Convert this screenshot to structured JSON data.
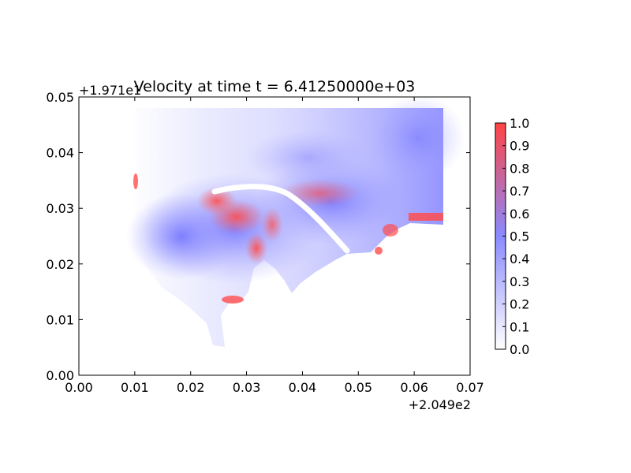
{
  "chart_data": {
    "type": "heatmap",
    "title": "Velocity at time t = 6.41250000e+03",
    "xlabel": "",
    "ylabel": "",
    "xlim": [
      0.0,
      0.07
    ],
    "ylim": [
      0.0,
      0.05
    ],
    "x_ticks": [
      "0.00",
      "0.01",
      "0.02",
      "0.03",
      "0.04",
      "0.05",
      "0.06",
      "0.07"
    ],
    "y_ticks": [
      "0.00",
      "0.01",
      "0.02",
      "0.03",
      "0.04",
      "0.05"
    ],
    "x_offset": "+2.049e2",
    "y_offset": "+1.971e1",
    "colorbar": {
      "ticks": [
        "0.0",
        "0.1",
        "0.2",
        "0.3",
        "0.4",
        "0.5",
        "0.6",
        "0.7",
        "0.8",
        "0.9",
        "1.0"
      ],
      "range": [
        0.0,
        1.0
      ],
      "colors": [
        "#ffffff",
        "#8a8aff",
        "#ff4444"
      ]
    },
    "grid": false,
    "domain_description_points": {
      "velocity_field_regions": [
        {
          "x": 0.025,
          "y": 0.031,
          "value": 1.0
        },
        {
          "x": 0.031,
          "y": 0.022,
          "value": 1.0
        },
        {
          "x": 0.04,
          "y": 0.032,
          "value": 0.8
        },
        {
          "x": 0.02,
          "y": 0.03,
          "value": 0.6
        },
        {
          "x": 0.05,
          "y": 0.04,
          "value": 0.35
        },
        {
          "x": 0.06,
          "y": 0.045,
          "value": 0.5
        },
        {
          "x": 0.015,
          "y": 0.04,
          "value": 0.1
        }
      ]
    }
  }
}
